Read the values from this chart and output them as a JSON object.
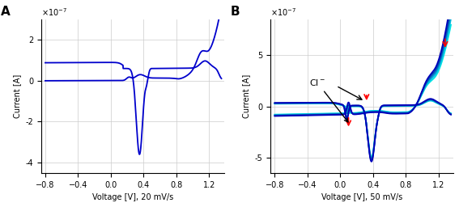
{
  "panel_A": {
    "label": "A",
    "xlabel": "Voltage [V], 20 mV/s",
    "ylabel": "Current [A]",
    "ylim": [
      -4.5e-07,
      3e-07
    ],
    "yticks": [
      -4e-07,
      -2e-07,
      0,
      2e-07
    ],
    "xlim": [
      -0.85,
      1.38
    ],
    "xticks": [
      -0.8,
      -0.4,
      0,
      0.4,
      0.8,
      1.2
    ],
    "color": "#0000CC",
    "line_width": 1.3
  },
  "panel_B": {
    "label": "B",
    "xlabel": "Voltage [V], 50 mV/s",
    "ylabel": "Current [A]",
    "ylim": [
      -6.5e-07,
      8.5e-07
    ],
    "yticks": [
      -5e-07,
      0,
      5e-07
    ],
    "xlim": [
      -0.85,
      1.38
    ],
    "xticks": [
      -0.8,
      -0.4,
      0,
      0.4,
      0.8,
      1.2
    ],
    "colors": [
      "#00E5E5",
      "#00BBDD",
      "#0077CC",
      "#0044AA",
      "#0000BB"
    ],
    "line_width": 1.3,
    "annotation_text": "Cl⁻"
  },
  "background_color": "#ffffff",
  "grid_color": "#cccccc"
}
